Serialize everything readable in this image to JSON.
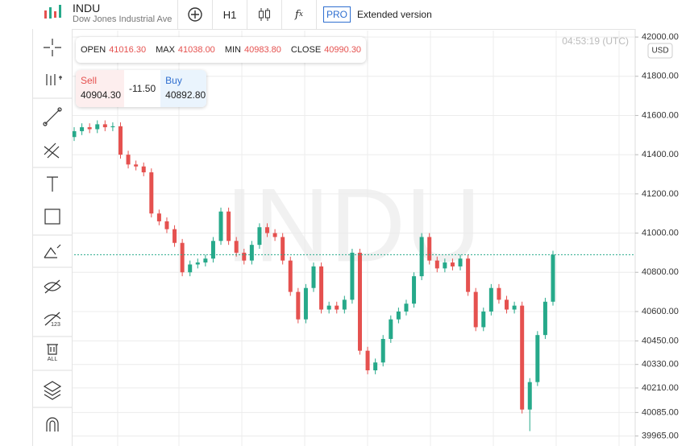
{
  "header": {
    "symbol": "INDU",
    "description": "Dow Jones Industrial Ave",
    "timeframe": "H1",
    "pro": "PRO",
    "extended": "Extended version"
  },
  "toolbar": {
    "hide_label": "123",
    "delete_label": "ALL"
  },
  "ohlc": {
    "open_label": "OPEN",
    "open": "41016.30",
    "max_label": "MAX",
    "max": "41038.00",
    "min_label": "MIN",
    "min": "40983.80",
    "close_label": "CLOSE",
    "close": "40990.30"
  },
  "trade": {
    "sell_label": "Sell",
    "sell": "40904.30",
    "spread": "-11.50",
    "buy_label": "Buy",
    "buy": "40892.80"
  },
  "clock": "04:53:19 (UTC)",
  "currency": "USD",
  "watermark": "INDU",
  "chart_data": {
    "type": "candlestick",
    "open": [
      41490,
      41520,
      41540,
      41530,
      41555,
      41540,
      41545,
      41400,
      41350,
      41340,
      41310,
      41100,
      41060,
      41020,
      40950,
      40800,
      40840,
      40850,
      40870,
      40960,
      41110,
      40960,
      40900,
      40860,
      40940,
      41030,
      41000,
      40980,
      40860,
      40700,
      40560,
      40720,
      40830,
      40610,
      40630,
      40610,
      40660,
      40900,
      40400,
      40300,
      40340,
      40460,
      40560,
      40600,
      40640,
      40780,
      40980,
      40860,
      40820,
      40850,
      40830,
      40870,
      40700,
      40520,
      40600,
      40720,
      40660,
      40610,
      40630,
      40100,
      40240,
      40480,
      40650
    ],
    "high": [
      41540,
      41560,
      41560,
      41575,
      41575,
      41565,
      41565,
      41420,
      41370,
      41360,
      41330,
      41120,
      41080,
      41040,
      40970,
      40860,
      40870,
      40890,
      40980,
      41130,
      41130,
      40980,
      40920,
      40960,
      41050,
      41050,
      41020,
      41000,
      40880,
      40720,
      40740,
      40850,
      40850,
      40650,
      40650,
      40680,
      40920,
      40920,
      40420,
      40360,
      40480,
      40580,
      40620,
      40660,
      40800,
      41000,
      41000,
      40880,
      40870,
      40870,
      40890,
      40890,
      40720,
      40620,
      40740,
      40740,
      40680,
      40650,
      40650,
      40260,
      40500,
      40670,
      40910
    ],
    "low": [
      41470,
      41500,
      41510,
      41510,
      41520,
      41520,
      41380,
      41330,
      41320,
      41290,
      41080,
      41040,
      41000,
      40930,
      40780,
      40780,
      40820,
      40830,
      40850,
      40940,
      40940,
      40880,
      40840,
      40840,
      40920,
      40980,
      40960,
      40840,
      40680,
      40540,
      40540,
      40700,
      40590,
      40590,
      40590,
      40590,
      40640,
      40380,
      40280,
      40280,
      40320,
      40440,
      40540,
      40580,
      40620,
      40760,
      40840,
      40800,
      40800,
      40810,
      40810,
      40680,
      40500,
      40500,
      40580,
      40640,
      40590,
      40590,
      40080,
      39990,
      40220,
      40460,
      40630
    ],
    "close": [
      41520,
      41540,
      41530,
      41555,
      41540,
      41545,
      41400,
      41350,
      41340,
      41310,
      41100,
      41060,
      41020,
      40950,
      40800,
      40840,
      40850,
      40870,
      40960,
      41110,
      40960,
      40900,
      40860,
      40940,
      41030,
      41000,
      40980,
      40860,
      40700,
      40560,
      40720,
      40830,
      40610,
      40630,
      40610,
      40660,
      40900,
      40400,
      40300,
      40340,
      40460,
      40560,
      40600,
      40640,
      40780,
      40980,
      40860,
      40820,
      40850,
      40830,
      40870,
      40700,
      40520,
      40600,
      40720,
      40660,
      40610,
      40630,
      40100,
      40240,
      40480,
      40650,
      40890
    ],
    "up_color": "#26a98a",
    "down_color": "#e5514f",
    "ylim": [
      39914,
      42033
    ],
    "yticks": [
      {
        "value": 42000,
        "label": "42000.00"
      },
      {
        "value": 41800,
        "label": "41800.00"
      },
      {
        "value": 41600,
        "label": "41600.00"
      },
      {
        "value": 41400,
        "label": "41400.00"
      },
      {
        "value": 41200,
        "label": "41200.00"
      },
      {
        "value": 41000,
        "label": "41000.00"
      },
      {
        "value": 40800,
        "label": "40800.00"
      },
      {
        "value": 40600,
        "label": "40600.00"
      },
      {
        "value": 40450,
        "label": "40450.00"
      },
      {
        "value": 40330,
        "label": "40330.00"
      },
      {
        "value": 40210,
        "label": "40210.00"
      },
      {
        "value": 40085,
        "label": "40085.00"
      },
      {
        "value": 39965,
        "label": "39965.00"
      }
    ],
    "grid": true
  }
}
